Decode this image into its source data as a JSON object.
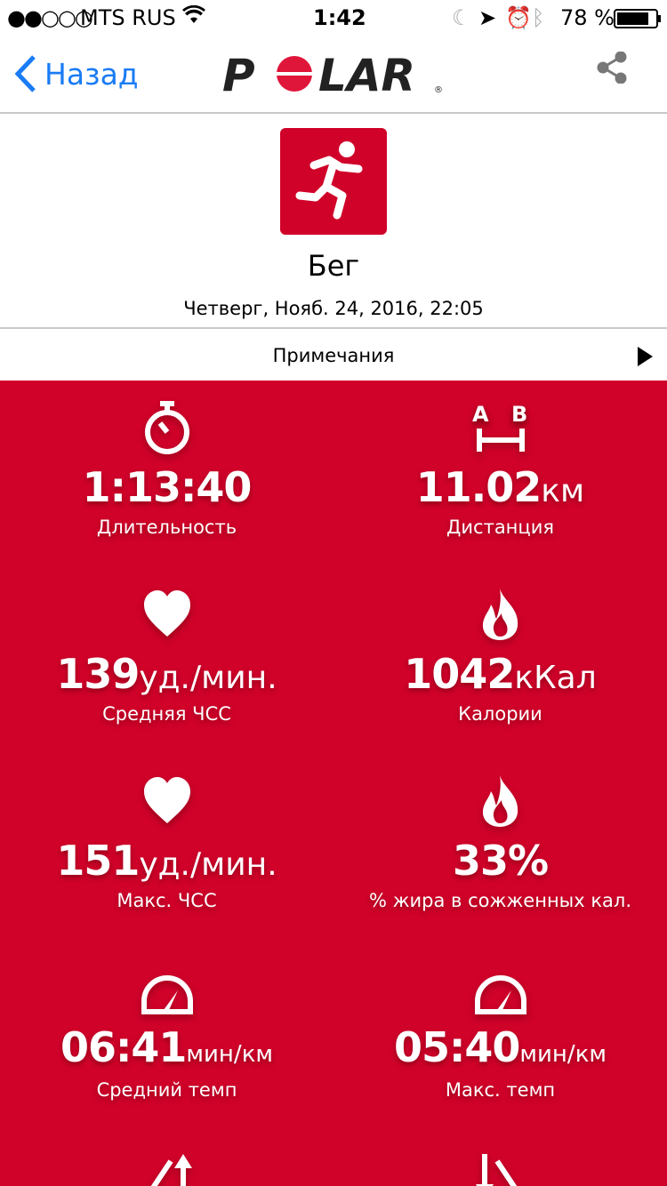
{
  "status": {
    "carrier": "MTS RUS",
    "time": "1:42",
    "battery": "78 %",
    "signal_bars": 2
  },
  "nav": {
    "back_label": "Назад",
    "logo": "POLAR",
    "share_icon": "share-icon"
  },
  "header": {
    "sport": "Бег",
    "date": "Четверг, Нояб. 24, 2016, 22:05",
    "sport_icon": "running-icon"
  },
  "notes": {
    "label": "Примечания"
  },
  "colors": {
    "accent": "#d0022a",
    "link": "#1a7cf5"
  },
  "stats": [
    {
      "icon": "stopwatch-icon",
      "value": "1:13:40",
      "unit": "",
      "label": "Длительность"
    },
    {
      "icon": "distance-ab-icon",
      "value": "11.02",
      "unit": "км",
      "label": "Дистанция"
    },
    {
      "icon": "heart-icon",
      "value": "139",
      "unit": "уд./мин.",
      "label": "Средняя ЧСС"
    },
    {
      "icon": "flame-icon",
      "value": "1042",
      "unit": "кКал",
      "label": "Калории"
    },
    {
      "icon": "heart-icon",
      "value": "151",
      "unit": "уд./мин.",
      "label": "Макс. ЧСС"
    },
    {
      "icon": "flame-icon",
      "value": "33%",
      "unit": "",
      "label": "% жира в сожженных кал."
    },
    {
      "icon": "speedometer-icon",
      "value": "06:41",
      "unit": "мин/км",
      "label": "Средний темп"
    },
    {
      "icon": "speedometer-icon",
      "value": "05:40",
      "unit": "мин/км",
      "label": "Макс. темп"
    },
    {
      "icon": "ascent-icon"
    },
    {
      "icon": "descent-icon"
    }
  ]
}
